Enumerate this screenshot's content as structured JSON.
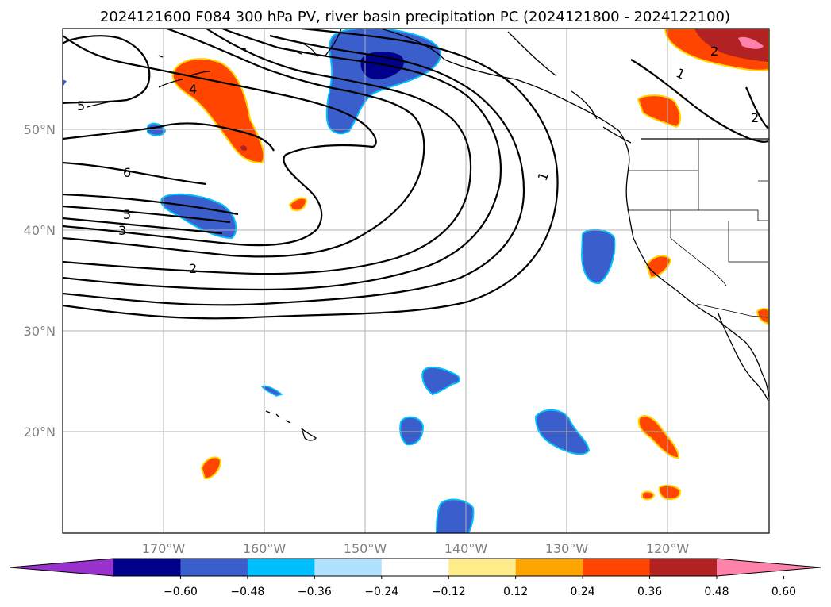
{
  "title": "2024121600 F084 300 hPa PV, river basin precipitation PC (2024121800 - 2024122100)",
  "map": {
    "lon_ticks": [
      "170°W",
      "160°W",
      "150°W",
      "140°W",
      "130°W",
      "120°W"
    ],
    "lat_ticks": [
      "50°N",
      "40°N",
      "30°N",
      "20°N"
    ],
    "contour_labels": [
      "5",
      "4",
      "6",
      "5",
      "3",
      "2",
      "1",
      "1",
      "2",
      "2"
    ]
  },
  "colorbar": {
    "ticks": [
      "−0.60",
      "−0.48",
      "−0.36",
      "−0.24",
      "−0.12",
      "0.12",
      "0.24",
      "0.36",
      "0.48",
      "0.60"
    ],
    "colors": [
      "#9932cc",
      "#00008b",
      "#3a5fcd",
      "#00bfff",
      "#b0e2ff",
      "#ffffff",
      "#ffec8b",
      "#ffa500",
      "#ff4500",
      "#b22222",
      "#ff82ab"
    ]
  }
}
